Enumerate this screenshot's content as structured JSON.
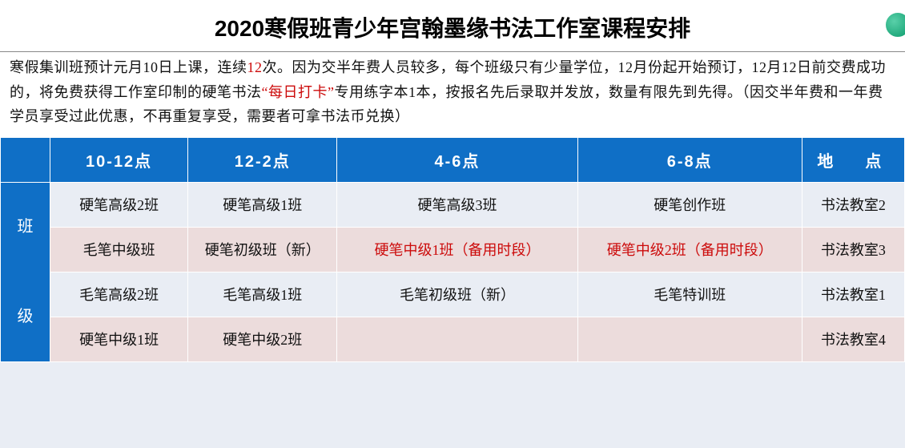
{
  "title": "2020寒假班青少年宫翰墨缘书法工作室课程安排",
  "desc": {
    "p1a": "寒假集训班预计元月10日上课，连续",
    "p1_red1": "12",
    "p1b": "次。因为交半年费人员较多，每个班级只有少量学位，12月份起开始预订，12月12日前交费成功的，将免费获得工作室印制的硬笔书法",
    "p1_red2": "“每日打卡”",
    "p1c": "专用练字本1本，按报名先后录取并发放，数量有限先到先得。（因交半年费和一年费学员享受过此优惠，不再重复享受，需要者可拿书法币兑换）"
  },
  "headers": {
    "h1": "10-12点",
    "h2": "12-2点",
    "h3": "4-6点",
    "h4": "6-8点",
    "h5": "地　点"
  },
  "rowhead": "班\n\n级",
  "rows": [
    {
      "bg": "light",
      "c1": "硬笔高级2班",
      "c2": "硬笔高级1班",
      "c3": "硬笔高级3班",
      "c4": "硬笔创作班",
      "c5": "书法教室2",
      "red": false
    },
    {
      "bg": "pink",
      "c1": "毛笔中级班",
      "c2": "硬笔初级班（新）",
      "c3": "硬笔中级1班（备用时段）",
      "c4": "硬笔中级2班（备用时段）",
      "c5": "书法教室3",
      "red": true
    },
    {
      "bg": "light",
      "c1": "毛笔高级2班",
      "c2": "毛笔高级1班",
      "c3": "毛笔初级班（新）",
      "c4": "毛笔特训班",
      "c5": "书法教室1",
      "red": false
    },
    {
      "bg": "pink",
      "c1": "硬笔中级1班",
      "c2": "硬笔中级2班",
      "c3": "",
      "c4": "",
      "c5": "书法教室4",
      "red": false
    }
  ],
  "colors": {
    "header_bg": "#0f6fc6",
    "light_bg": "#e9edf4",
    "pink_bg": "#ecdcdc",
    "red_text": "#cc0a0a",
    "border": "#ffffff"
  }
}
